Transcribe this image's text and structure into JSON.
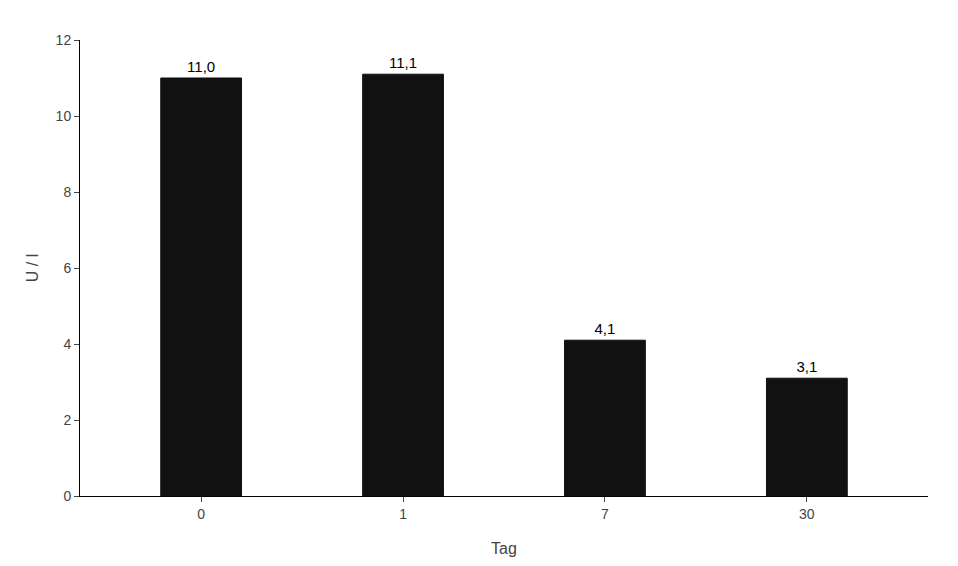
{
  "chart_data": {
    "type": "bar",
    "categories": [
      "0",
      "1",
      "7",
      "30"
    ],
    "values": [
      11.0,
      11.1,
      4.1,
      3.1
    ],
    "value_labels": [
      "11,0",
      "11,1",
      "4,1",
      "3,1"
    ],
    "data_labels": true,
    "color": "#111111",
    "xlabel": "Tag",
    "ylabel": "U / l",
    "ylim": [
      0,
      12
    ],
    "yticks": [
      0,
      2,
      4,
      6,
      8,
      10,
      12
    ],
    "grid": false
  }
}
